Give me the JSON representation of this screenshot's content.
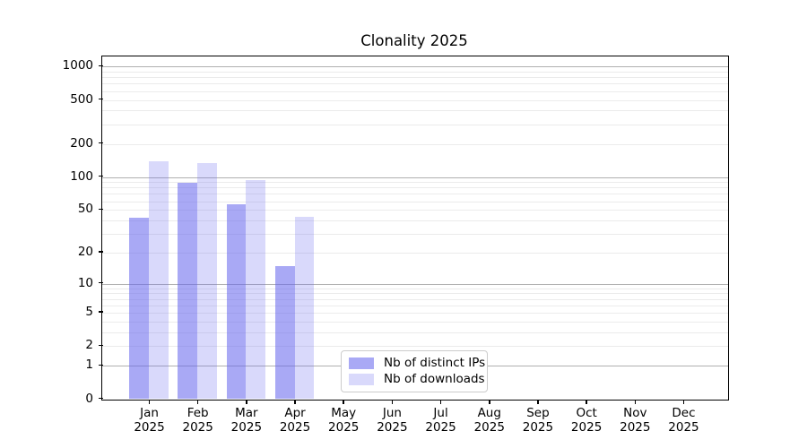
{
  "chart_data": {
    "type": "bar",
    "title": "Clonality 2025",
    "scale": "log1p",
    "categories": [
      "Jan 2025",
      "Feb 2025",
      "Mar 2025",
      "Apr 2025",
      "May 2025",
      "Jun 2025",
      "Jul 2025",
      "Aug 2025",
      "Sep 2025",
      "Oct 2025",
      "Nov 2025",
      "Dec 2025"
    ],
    "series": [
      {
        "name": "Nb of distinct IPs",
        "color": "rgba(102,102,238,0.56)",
        "values": [
          42,
          88,
          56,
          15,
          0,
          0,
          0,
          0,
          0,
          0,
          0,
          0
        ]
      },
      {
        "name": "Nb of downloads",
        "color": "rgba(102,102,238,0.25)",
        "values": [
          139,
          133,
          93,
          43,
          0,
          0,
          0,
          0,
          0,
          0,
          0,
          0
        ]
      }
    ],
    "yticks": [
      0,
      1,
      2,
      5,
      10,
      20,
      50,
      100,
      200,
      500,
      1000
    ],
    "ylim": [
      0,
      1200
    ],
    "xlabel": "",
    "ylabel": "",
    "grid": true,
    "legend_position": "lower center"
  },
  "colors": {
    "major_grid": "#b0b0b0",
    "minor_grid": "#ebebeb",
    "spine": "#000000",
    "legend_border": "#cccccc"
  }
}
